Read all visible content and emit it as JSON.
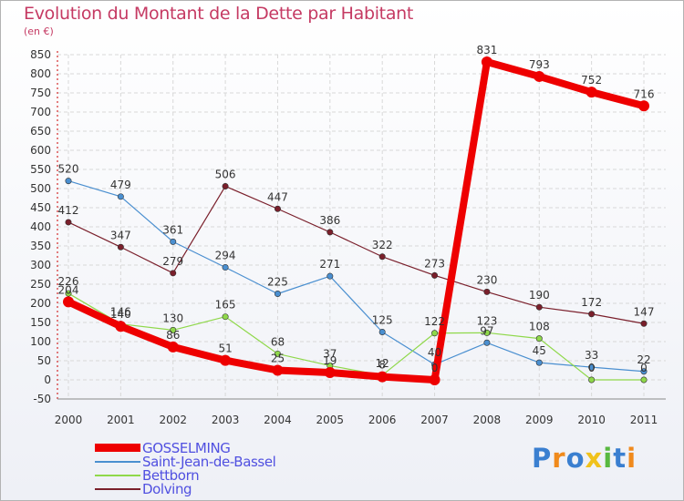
{
  "chart_data": {
    "type": "line",
    "title": "Evolution du Montant de la Dette par Habitant",
    "subtitle": "(en €)",
    "x": [
      "2000",
      "2001",
      "2002",
      "2003",
      "2004",
      "2005",
      "2006",
      "2007",
      "2008",
      "2009",
      "2010",
      "2011"
    ],
    "ylim": [
      -50,
      850
    ],
    "yticks": [
      "-50",
      "0",
      "50",
      "100",
      "150",
      "200",
      "250",
      "300",
      "350",
      "400",
      "450",
      "500",
      "550",
      "600",
      "650",
      "700",
      "750",
      "800",
      "850"
    ],
    "grid": true,
    "legend_position": "bottom-left",
    "series": [
      {
        "name": "Dolving",
        "color": "#7a1f2b",
        "values": [
          412,
          347,
          279,
          506,
          447,
          386,
          322,
          273,
          230,
          190,
          172,
          147
        ]
      },
      {
        "name": "Saint-Jean-de-Bassel",
        "color": "#4a8fd0",
        "values": [
          520,
          479,
          361,
          294,
          225,
          271,
          125,
          40,
          97,
          45,
          33,
          22
        ]
      },
      {
        "name": "Bettborn",
        "color": "#8fd84a",
        "values": [
          226,
          146,
          130,
          165,
          68,
          37,
          12,
          122,
          123,
          108,
          0,
          0
        ]
      },
      {
        "name": "GOSSELMING",
        "color": "#ee0000",
        "values": [
          204,
          140,
          86,
          51,
          25,
          19,
          8,
          0,
          831,
          793,
          752,
          716
        ]
      }
    ],
    "data_labels": [
      {
        "series": "Dolving",
        "labels": [
          "412",
          "347",
          "279",
          "506",
          "447",
          "386",
          "322",
          "273",
          "230",
          "190",
          "172",
          "147"
        ]
      },
      {
        "series": "Saint-Jean-de-Bassel",
        "labels": [
          "520",
          "479",
          "361",
          "294",
          "225",
          "271",
          "125",
          "40",
          "97",
          "45",
          "33",
          "22"
        ]
      },
      {
        "series": "Bettborn",
        "labels": [
          "226",
          "146",
          "130",
          "165",
          "68",
          "37",
          "12",
          "122",
          "123",
          "108",
          "0",
          "0"
        ]
      },
      {
        "series": "GOSSELMING",
        "labels": [
          "204",
          "140",
          "86",
          "51",
          "25",
          "19",
          "8",
          "0",
          "831",
          "793",
          "752",
          "716"
        ]
      }
    ]
  },
  "legend": [
    {
      "label": "GOSSELMING",
      "color": "#ee0000"
    },
    {
      "label": "Saint-Jean-de-Bassel",
      "color": "#4a8fd0"
    },
    {
      "label": "Bettborn",
      "color": "#8fd84a"
    },
    {
      "label": "Dolving",
      "color": "#7a1f2b"
    }
  ],
  "brand": {
    "text": "Proxiti",
    "letters": [
      "P",
      "r",
      "o",
      "x",
      "i",
      "t",
      "i"
    ],
    "colors": [
      "#3a7fd0",
      "#f08a1c",
      "#3a7fd0",
      "#f0c21c",
      "#59b940",
      "#3a7fd0",
      "#f08a1c"
    ]
  }
}
